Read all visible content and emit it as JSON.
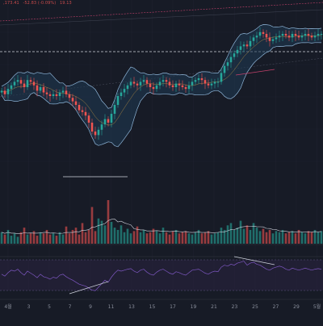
{
  "header": {
    "price_parts": [
      ",173.41",
      "-52.83 (-0.09%)",
      "19.13"
    ]
  },
  "colors": {
    "background": "#171b26",
    "up": "#26a69a",
    "down": "#ef5350",
    "band_fill": "#1f3a53",
    "band_line": "#8fb6d9",
    "rsi_line": "#7e57c2",
    "rsi_fill": "#2a2240",
    "trend": "#c2416b",
    "pane_border": "#2a2e39",
    "axis_text": "#8a8f9c"
  },
  "chart_data": {
    "type": "candlestick",
    "x_ticks": [
      "4월",
      "3",
      "5",
      "7",
      "9",
      "11",
      "13",
      "15",
      "17",
      "19",
      "21",
      "23",
      "25",
      "27",
      "29",
      "5월"
    ],
    "price_axis": [
      0,
      100
    ],
    "price_series": [
      58,
      56,
      59,
      61,
      63,
      64,
      62,
      60,
      64,
      63,
      61,
      58,
      60,
      57,
      56,
      55,
      56,
      55,
      57,
      58,
      56,
      54,
      52,
      50,
      47,
      46,
      44,
      40,
      35,
      33,
      36,
      39,
      42,
      40,
      45,
      50,
      55,
      57,
      59,
      61,
      63,
      62,
      61,
      63,
      64,
      62,
      60,
      59,
      61,
      63,
      64,
      63,
      61,
      60,
      62,
      61,
      60,
      59,
      61,
      63,
      64,
      65,
      64,
      62,
      61,
      62,
      63,
      63,
      68,
      72,
      74,
      77,
      79,
      81,
      83,
      84,
      83,
      86,
      88,
      89,
      91,
      90,
      88,
      86,
      87,
      88,
      89,
      90,
      89,
      88,
      90,
      89,
      88,
      89,
      90,
      89,
      88,
      89,
      90,
      90
    ],
    "volume_series": [
      10,
      8,
      12,
      7,
      9,
      6,
      10,
      14,
      8,
      9,
      11,
      7,
      10,
      9,
      12,
      8,
      9,
      7,
      10,
      8,
      15,
      9,
      12,
      14,
      8,
      18,
      10,
      12,
      32,
      11,
      22,
      20,
      16,
      38,
      19,
      14,
      12,
      16,
      10,
      13,
      9,
      11,
      15,
      10,
      12,
      9,
      10,
      13,
      11,
      9,
      14,
      10,
      8,
      11,
      12,
      9,
      10,
      11,
      9,
      8,
      10,
      12,
      9,
      10,
      11,
      8,
      9,
      10,
      14,
      12,
      16,
      18,
      12,
      14,
      20,
      13,
      16,
      12,
      18,
      14,
      11,
      13,
      10,
      12,
      9,
      11,
      10,
      12,
      9,
      10,
      11,
      9,
      12,
      10,
      9,
      11,
      10,
      12,
      10,
      11
    ],
    "rsi_series": [
      52,
      48,
      55,
      60,
      58,
      62,
      55,
      50,
      58,
      54,
      50,
      45,
      52,
      47,
      45,
      42,
      46,
      44,
      50,
      52,
      47,
      43,
      40,
      36,
      32,
      30,
      28,
      24,
      20,
      19,
      26,
      33,
      40,
      36,
      46,
      54,
      60,
      58,
      60,
      62,
      63,
      58,
      55,
      60,
      62,
      56,
      52,
      50,
      56,
      60,
      62,
      58,
      54,
      52,
      57,
      55,
      52,
      50,
      55,
      60,
      61,
      62,
      58,
      54,
      52,
      56,
      58,
      57,
      66,
      70,
      68,
      72,
      70,
      74,
      76,
      78,
      70,
      74,
      76,
      72,
      70,
      66,
      62,
      60,
      64,
      66,
      68,
      66,
      62,
      60,
      64,
      62,
      60,
      62,
      64,
      62,
      60,
      62,
      63,
      62
    ],
    "rsi_axis": [
      0,
      100
    ]
  }
}
